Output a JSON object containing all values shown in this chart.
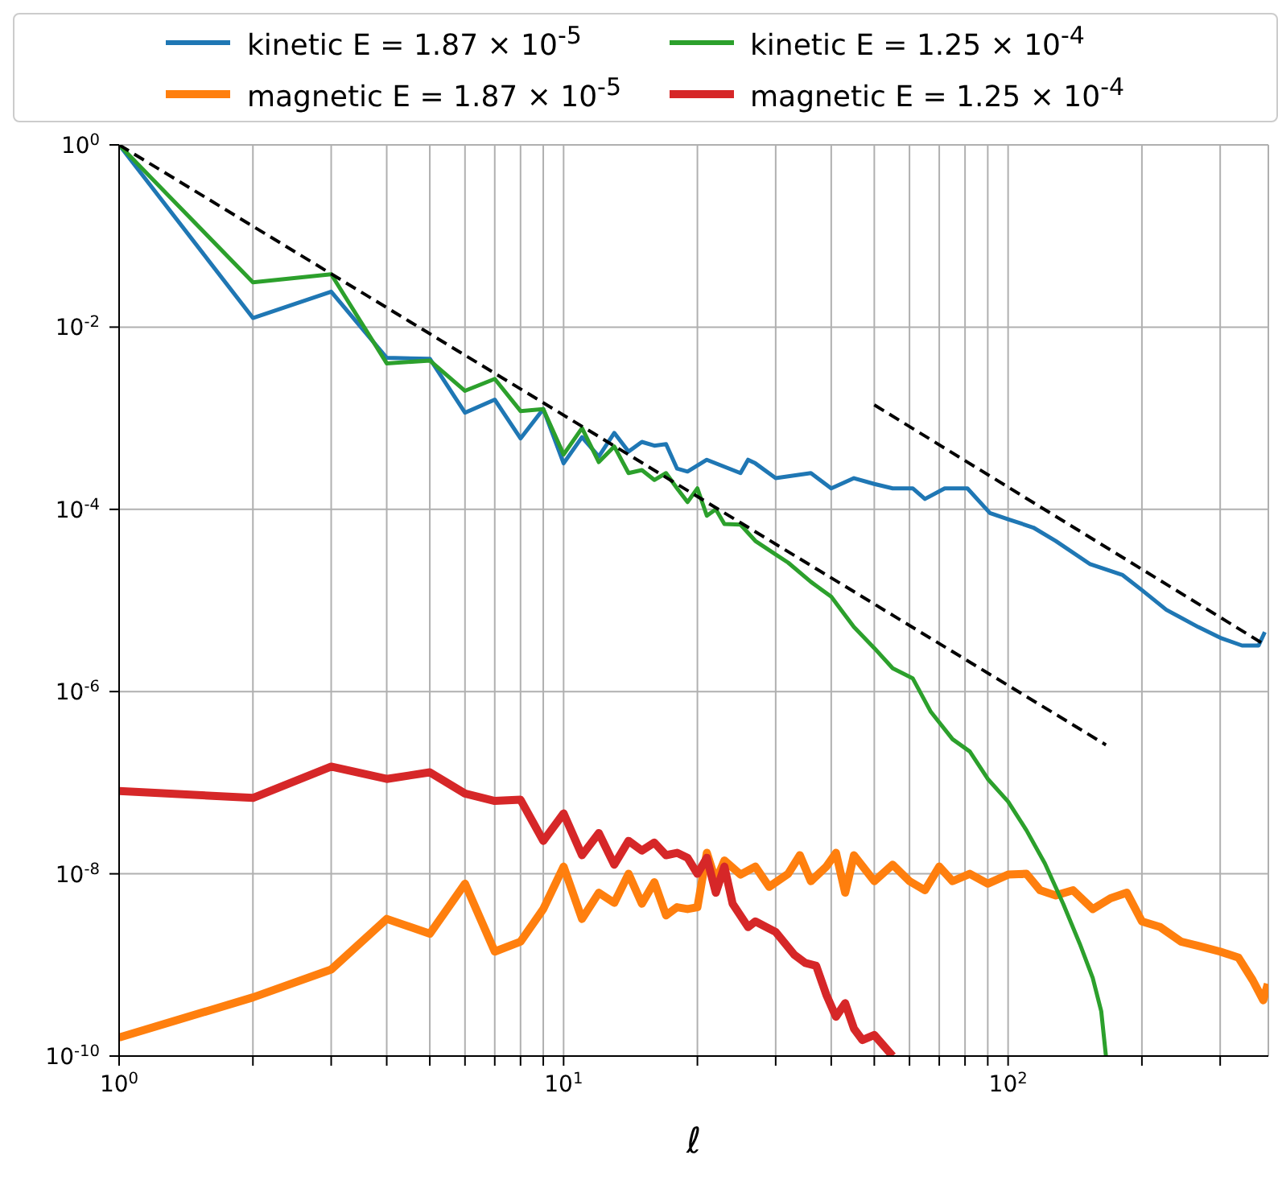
{
  "chart_data": {
    "type": "line",
    "xlabel": "ℓ",
    "log": "xy",
    "grid": true,
    "legend": "top",
    "marker": "none",
    "xlim": [
      1,
      385
    ],
    "ylim": [
      1e-10,
      1
    ],
    "xticks": [
      {
        "value": 1,
        "label": "10$^{0}$"
      },
      {
        "value": 2,
        "label": null
      },
      {
        "value": 3,
        "label": null
      },
      {
        "value": 4,
        "label": null
      },
      {
        "value": 5,
        "label": null
      },
      {
        "value": 6,
        "label": null
      },
      {
        "value": 7,
        "label": null
      },
      {
        "value": 8,
        "label": null
      },
      {
        "value": 9,
        "label": null
      },
      {
        "value": 10,
        "label": "10$^{1}$"
      },
      {
        "value": 20,
        "label": null
      },
      {
        "value": 30,
        "label": null
      },
      {
        "value": 40,
        "label": null
      },
      {
        "value": 50,
        "label": null
      },
      {
        "value": 60,
        "label": null
      },
      {
        "value": 70,
        "label": null
      },
      {
        "value": 80,
        "label": null
      },
      {
        "value": 90,
        "label": null
      },
      {
        "value": 100,
        "label": "10$^{2}$"
      },
      {
        "value": 200,
        "label": null
      },
      {
        "value": 300,
        "label": null
      }
    ],
    "yticks": [
      {
        "value": 1e-10,
        "label": "10$^{-10}$"
      },
      {
        "value": 1e-08,
        "label": "10$^{-8}$"
      },
      {
        "value": 1e-06,
        "label": "10$^{-6}$"
      },
      {
        "value": 0.0001,
        "label": "10$^{-4}$"
      },
      {
        "value": 0.01,
        "label": "10$^{-2}$"
      },
      {
        "value": 1,
        "label": "10$^{0}$"
      }
    ],
    "series": [
      {
        "name": "kinetic E = 1.87 × 10$^{-5}$",
        "color": "#1f77b4",
        "x": [
          1,
          2,
          3,
          4,
          5,
          6,
          7,
          8,
          9,
          10,
          11,
          12,
          13,
          14,
          15,
          16,
          17,
          18,
          19,
          21,
          25,
          26,
          27,
          30,
          36,
          40,
          45,
          50,
          55,
          61,
          65,
          72,
          81,
          91,
          100,
          114,
          128,
          153,
          181,
          200,
          227,
          268,
          300,
          336,
          366,
          378
        ],
        "values": [
          1,
          0.0126,
          0.0245,
          0.0046,
          0.0045,
          0.00115,
          0.0016,
          0.0006,
          0.00126,
          0.00032,
          0.00062,
          0.00038,
          0.00069,
          0.00043,
          0.00055,
          0.0005,
          0.00052,
          0.00028,
          0.00026,
          0.00035,
          0.00025,
          0.00035,
          0.00032,
          0.00022,
          0.00025,
          0.00017,
          0.00022,
          0.00019,
          0.00017,
          0.00017,
          0.00013,
          0.00017,
          0.00017,
          9.1e-05,
          7.8e-05,
          6.3e-05,
          4.5e-05,
          2.5e-05,
          1.9e-05,
          1.3e-05,
          7.9e-06,
          5.1e-06,
          3.9e-06,
          3.2e-06,
          3.2e-06,
          4.5e-06
        ]
      },
      {
        "name": "magnetic E = 1.87 × 10$^{-5}$",
        "color": "#ff7f0e",
        "x": [
          1,
          2,
          3,
          4,
          5,
          6,
          7,
          8,
          9,
          10,
          11,
          12,
          13,
          14,
          15,
          16,
          17,
          18,
          19,
          20,
          21,
          22,
          23,
          25,
          27,
          29,
          32,
          34,
          36,
          39,
          41,
          43,
          45,
          50,
          55,
          60,
          65,
          70,
          75,
          82,
          90,
          100,
          110,
          118,
          128,
          140,
          155,
          170,
          185,
          200,
          220,
          245,
          270,
          300,
          330,
          355,
          375,
          384
        ],
        "values": [
          1.6e-10,
          4.4e-10,
          8.9e-10,
          3.2e-09,
          2.2e-09,
          7.8e-09,
          1.4e-09,
          1.8e-09,
          4.1e-09,
          1.2e-08,
          3.2e-09,
          6.2e-09,
          4.8e-09,
          1e-08,
          4.7e-09,
          8.1e-09,
          3.5e-09,
          4.3e-09,
          4.1e-09,
          4.3e-09,
          1.7e-08,
          8.3e-09,
          1.4e-08,
          9.8e-09,
          1.2e-08,
          7.2e-09,
          1e-08,
          1.6e-08,
          8.3e-09,
          1.2e-08,
          1.7e-08,
          6.2e-09,
          1.6e-08,
          8.3e-09,
          1.26e-08,
          8.3e-09,
          6.6e-09,
          1.2e-08,
          8.3e-09,
          1e-08,
          7.8e-09,
          9.8e-09,
          1e-08,
          6.6e-09,
          5.8e-09,
          6.6e-09,
          4.1e-09,
          5.4e-09,
          6.2e-09,
          3e-09,
          2.6e-09,
          1.8e-09,
          1.6e-09,
          1.4e-09,
          1.2e-09,
          6.8e-10,
          4.1e-10,
          6.2e-10
        ]
      },
      {
        "name": "kinetic E = 1.25 × 10$^{-4}$",
        "color": "#2ca02c",
        "x": [
          1,
          2,
          3,
          4,
          5,
          6,
          7,
          8,
          9,
          10,
          11,
          12,
          13,
          14,
          15,
          16,
          17,
          18,
          19,
          20,
          21,
          22,
          23,
          25,
          27,
          30,
          32,
          36,
          40,
          45,
          50,
          55,
          61,
          67,
          75,
          82,
          90,
          100,
          110,
          121,
          133,
          145,
          155,
          162,
          166
        ],
        "values": [
          1,
          0.031,
          0.038,
          0.004,
          0.0043,
          0.002,
          0.0027,
          0.0012,
          0.00126,
          0.0004,
          0.00078,
          0.00033,
          0.00049,
          0.00025,
          0.00027,
          0.00021,
          0.00025,
          0.00017,
          0.00012,
          0.00017,
          8.5e-05,
          0.0001,
          6.9e-05,
          6.8e-05,
          4.5e-05,
          3.2e-05,
          2.6e-05,
          1.6e-05,
          1.1e-05,
          5.1e-06,
          3e-06,
          1.8e-06,
          1.4e-06,
          6e-07,
          3e-07,
          2.2e-07,
          1.1e-07,
          6.2e-08,
          3e-08,
          1.3e-08,
          4.7e-09,
          1.7e-09,
          7.2e-10,
          3.1e-10,
          1e-10
        ]
      },
      {
        "name": "magnetic E = 1.25 × 10$^{-4}$",
        "color": "#d62728",
        "x": [
          1,
          2,
          3,
          4,
          5,
          6,
          7,
          8,
          9,
          10,
          11,
          12,
          13,
          14,
          15,
          16,
          17,
          18,
          19,
          20,
          21,
          22,
          23,
          24,
          26,
          27,
          30,
          33,
          35,
          37,
          39,
          41,
          43,
          45,
          47,
          50,
          55
        ],
        "values": [
          8.1e-08,
          6.8e-08,
          1.5e-07,
          1.1e-07,
          1.3e-07,
          7.6e-08,
          6.3e-08,
          6.5e-08,
          2.3e-08,
          4.6e-08,
          1.6e-08,
          2.8e-08,
          1.26e-08,
          2.3e-08,
          1.8e-08,
          2.2e-08,
          1.6e-08,
          1.7e-08,
          1.5e-08,
          1e-08,
          1.5e-08,
          6.2e-09,
          1.2e-08,
          4.7e-09,
          2.6e-09,
          3e-09,
          2.3e-09,
          1.3e-09,
          1.05e-09,
          9.8e-10,
          4.7e-10,
          2.7e-10,
          3.8e-10,
          2e-10,
          1.5e-10,
          1.7e-10,
          1e-10
        ]
      },
      {
        "color": "#000000",
        "line_style": "dashed",
        "x": [
          1,
          166
        ],
        "values": [
          1,
          2.6e-07
        ]
      },
      {
        "color": "#000000",
        "line_style": "dashed",
        "x": [
          50,
          373
        ],
        "values": [
          0.0014,
          3.4e-06
        ]
      }
    ]
  }
}
